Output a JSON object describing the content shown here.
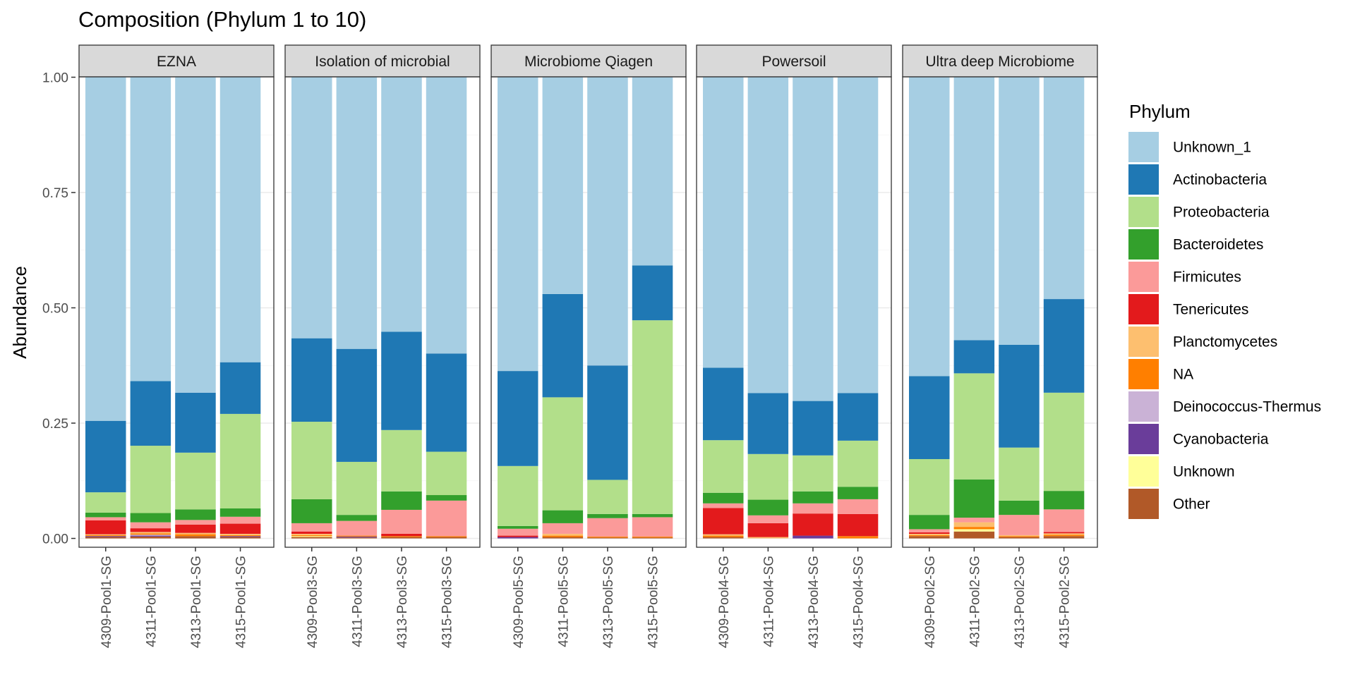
{
  "chart_data": {
    "type": "bar",
    "stacked": true,
    "title": "Composition (Phylum 1 to 10)",
    "ylabel": "Abundance",
    "xlabel": "",
    "ylim": [
      0,
      1
    ],
    "yticks": [
      "0.00",
      "0.25",
      "0.50",
      "0.75",
      "1.00"
    ],
    "grid": true,
    "legend": {
      "title": "Phylum",
      "position": "right"
    },
    "stack_order": [
      "Other",
      "Unknown",
      "Cyanobacteria",
      "Deinococcus-Thermus",
      "NA",
      "Planctomycetes",
      "Tenericutes",
      "Firmicutes",
      "Bacteroidetes",
      "Proteobacteria",
      "Actinobacteria",
      "Unknown_1"
    ],
    "series_info": [
      {
        "name": "Unknown_1",
        "color": "#A6CEE3"
      },
      {
        "name": "Actinobacteria",
        "color": "#1F78B4"
      },
      {
        "name": "Proteobacteria",
        "color": "#B2DF8A"
      },
      {
        "name": "Bacteroidetes",
        "color": "#33A02C"
      },
      {
        "name": "Firmicutes",
        "color": "#FB9A99"
      },
      {
        "name": "Tenericutes",
        "color": "#E31A1C"
      },
      {
        "name": "Planctomycetes",
        "color": "#FDBF6F"
      },
      {
        "name": "NA",
        "color": "#FF7F00"
      },
      {
        "name": "Deinococcus-Thermus",
        "color": "#CAB2D6"
      },
      {
        "name": "Cyanobacteria",
        "color": "#6A3D9A"
      },
      {
        "name": "Unknown",
        "color": "#FFFF99"
      },
      {
        "name": "Other",
        "color": "#B15928"
      }
    ],
    "panels": [
      {
        "name": "EZNA",
        "samples": [
          {
            "label": "4309-Pool1-SG",
            "values": {
              "Other": 0.003,
              "Unknown": 0,
              "Cyanobacteria": 0.002,
              "Deinococcus-Thermus": 0,
              "NA": 0.002,
              "Planctomycetes": 0.002,
              "Tenericutes": 0.03,
              "Firmicutes": 0.007,
              "Bacteroidetes": 0.01,
              "Proteobacteria": 0.044,
              "Actinobacteria": 0.155,
              "Unknown_1": 0.745
            }
          },
          {
            "label": "4311-Pool1-SG",
            "values": {
              "Other": 0.004,
              "Unknown": 0,
              "Cyanobacteria": 0.002,
              "Deinococcus-Thermus": 0.002,
              "NA": 0.003,
              "Planctomycetes": 0.003,
              "Tenericutes": 0.008,
              "Firmicutes": 0.013,
              "Bacteroidetes": 0.02,
              "Proteobacteria": 0.146,
              "Actinobacteria": 0.14,
              "Unknown_1": 0.659
            }
          },
          {
            "label": "4313-Pool1-SG",
            "values": {
              "Other": 0.005,
              "Unknown": 0,
              "Cyanobacteria": 0,
              "Deinococcus-Thermus": 0,
              "NA": 0.004,
              "Planctomycetes": 0.003,
              "Tenericutes": 0.018,
              "Firmicutes": 0.01,
              "Bacteroidetes": 0.023,
              "Proteobacteria": 0.123,
              "Actinobacteria": 0.13,
              "Unknown_1": 0.684
            }
          },
          {
            "label": "4315-Pool1-SG",
            "values": {
              "Other": 0.003,
              "Unknown": 0,
              "Cyanobacteria": 0.002,
              "Deinococcus-Thermus": 0,
              "NA": 0.002,
              "Planctomycetes": 0.003,
              "Tenericutes": 0.022,
              "Firmicutes": 0.015,
              "Bacteroidetes": 0.018,
              "Proteobacteria": 0.205,
              "Actinobacteria": 0.112,
              "Unknown_1": 0.618
            }
          }
        ]
      },
      {
        "name": "Isolation of microbial",
        "samples": [
          {
            "label": "4309-Pool3-SG",
            "values": {
              "Other": 0.003,
              "Unknown": 0.002,
              "Cyanobacteria": 0,
              "Deinococcus-Thermus": 0,
              "NA": 0.002,
              "Planctomycetes": 0.003,
              "Tenericutes": 0.005,
              "Firmicutes": 0.018,
              "Bacteroidetes": 0.052,
              "Proteobacteria": 0.168,
              "Actinobacteria": 0.181,
              "Unknown_1": 0.566
            }
          },
          {
            "label": "4311-Pool3-SG",
            "values": {
              "Other": 0.002,
              "Unknown": 0,
              "Cyanobacteria": 0.002,
              "Deinococcus-Thermus": 0,
              "NA": 0.002,
              "Planctomycetes": 0,
              "Tenericutes": 0,
              "Firmicutes": 0.032,
              "Bacteroidetes": 0.013,
              "Proteobacteria": 0.115,
              "Actinobacteria": 0.245,
              "Unknown_1": 0.589
            }
          },
          {
            "label": "4313-Pool3-SG",
            "values": {
              "Other": 0.003,
              "Unknown": 0,
              "Cyanobacteria": 0,
              "Deinococcus-Thermus": 0,
              "NA": 0.002,
              "Planctomycetes": 0,
              "Tenericutes": 0.005,
              "Firmicutes": 0.052,
              "Bacteroidetes": 0.04,
              "Proteobacteria": 0.133,
              "Actinobacteria": 0.213,
              "Unknown_1": 0.552
            }
          },
          {
            "label": "4315-Pool3-SG",
            "values": {
              "Other": 0.003,
              "Unknown": 0,
              "Cyanobacteria": 0,
              "Deinococcus-Thermus": 0,
              "NA": 0.002,
              "Planctomycetes": 0,
              "Tenericutes": 0,
              "Firmicutes": 0.077,
              "Bacteroidetes": 0.012,
              "Proteobacteria": 0.094,
              "Actinobacteria": 0.213,
              "Unknown_1": 0.599
            }
          }
        ]
      },
      {
        "name": "Microbiome Qiagen",
        "samples": [
          {
            "label": "4309-Pool5-SG",
            "values": {
              "Other": 0,
              "Unknown": 0,
              "Cyanobacteria": 0.003,
              "Deinococcus-Thermus": 0,
              "NA": 0,
              "Planctomycetes": 0,
              "Tenericutes": 0.003,
              "Firmicutes": 0.015,
              "Bacteroidetes": 0.006,
              "Proteobacteria": 0.13,
              "Actinobacteria": 0.206,
              "Unknown_1": 0.637
            }
          },
          {
            "label": "4311-Pool5-SG",
            "values": {
              "Other": 0.003,
              "Unknown": 0,
              "Cyanobacteria": 0,
              "Deinococcus-Thermus": 0,
              "NA": 0.003,
              "Planctomycetes": 0.004,
              "Tenericutes": 0,
              "Firmicutes": 0.023,
              "Bacteroidetes": 0.028,
              "Proteobacteria": 0.245,
              "Actinobacteria": 0.224,
              "Unknown_1": 0.47
            }
          },
          {
            "label": "4313-Pool5-SG",
            "values": {
              "Other": 0.002,
              "Unknown": 0,
              "Cyanobacteria": 0,
              "Deinococcus-Thermus": 0,
              "NA": 0.002,
              "Planctomycetes": 0,
              "Tenericutes": 0,
              "Firmicutes": 0.04,
              "Bacteroidetes": 0.009,
              "Proteobacteria": 0.074,
              "Actinobacteria": 0.248,
              "Unknown_1": 0.625
            }
          },
          {
            "label": "4315-Pool5-SG",
            "values": {
              "Other": 0.002,
              "Unknown": 0,
              "Cyanobacteria": 0,
              "Deinococcus-Thermus": 0,
              "NA": 0.002,
              "Planctomycetes": 0,
              "Tenericutes": 0,
              "Firmicutes": 0.042,
              "Bacteroidetes": 0.007,
              "Proteobacteria": 0.42,
              "Actinobacteria": 0.119,
              "Unknown_1": 0.408
            }
          }
        ]
      },
      {
        "name": "Powersoil",
        "samples": [
          {
            "label": "4309-Pool4-SG",
            "values": {
              "Other": 0.003,
              "Unknown": 0,
              "Cyanobacteria": 0,
              "Deinococcus-Thermus": 0,
              "NA": 0.003,
              "Planctomycetes": 0.003,
              "Tenericutes": 0.057,
              "Firmicutes": 0.01,
              "Bacteroidetes": 0.023,
              "Proteobacteria": 0.114,
              "Actinobacteria": 0.157,
              "Unknown_1": 0.63
            }
          },
          {
            "label": "4311-Pool4-SG",
            "values": {
              "Other": 0,
              "Unknown": 0,
              "Cyanobacteria": 0,
              "Deinococcus-Thermus": 0,
              "NA": 0,
              "Planctomycetes": 0.003,
              "Tenericutes": 0.03,
              "Firmicutes": 0.017,
              "Bacteroidetes": 0.034,
              "Proteobacteria": 0.099,
              "Actinobacteria": 0.132,
              "Unknown_1": 0.685
            }
          },
          {
            "label": "4313-Pool4-SG",
            "values": {
              "Other": 0,
              "Unknown": 0,
              "Cyanobacteria": 0.006,
              "Deinococcus-Thermus": 0,
              "NA": 0,
              "Planctomycetes": 0,
              "Tenericutes": 0.048,
              "Firmicutes": 0.022,
              "Bacteroidetes": 0.026,
              "Proteobacteria": 0.078,
              "Actinobacteria": 0.118,
              "Unknown_1": 0.702
            }
          },
          {
            "label": "4315-Pool4-SG",
            "values": {
              "Other": 0,
              "Unknown": 0,
              "Cyanobacteria": 0,
              "Deinococcus-Thermus": 0,
              "NA": 0.005,
              "Planctomycetes": 0,
              "Tenericutes": 0.048,
              "Firmicutes": 0.032,
              "Bacteroidetes": 0.027,
              "Proteobacteria": 0.1,
              "Actinobacteria": 0.103,
              "Unknown_1": 0.685
            }
          }
        ]
      },
      {
        "name": "Ultra deep Microbiome",
        "samples": [
          {
            "label": "4309-Pool2-SG",
            "values": {
              "Other": 0.005,
              "Unknown": 0,
              "Cyanobacteria": 0,
              "Deinococcus-Thermus": 0,
              "NA": 0.002,
              "Planctomycetes": 0.003,
              "Tenericutes": 0.003,
              "Firmicutes": 0.007,
              "Bacteroidetes": 0.031,
              "Proteobacteria": 0.121,
              "Actinobacteria": 0.18,
              "Unknown_1": 0.648
            }
          },
          {
            "label": "4311-Pool2-SG",
            "values": {
              "Other": 0.015,
              "Unknown": 0.005,
              "Cyanobacteria": 0,
              "Deinococcus-Thermus": 0,
              "NA": 0.005,
              "Planctomycetes": 0.01,
              "Tenericutes": 0,
              "Firmicutes": 0.01,
              "Bacteroidetes": 0.083,
              "Proteobacteria": 0.23,
              "Actinobacteria": 0.072,
              "Unknown_1": 0.57
            }
          },
          {
            "label": "4313-Pool2-SG",
            "values": {
              "Other": 0.003,
              "Unknown": 0,
              "Cyanobacteria": 0,
              "Deinococcus-Thermus": 0,
              "NA": 0.002,
              "Planctomycetes": 0.002,
              "Tenericutes": 0,
              "Firmicutes": 0.044,
              "Bacteroidetes": 0.031,
              "Proteobacteria": 0.115,
              "Actinobacteria": 0.223,
              "Unknown_1": 0.58
            }
          },
          {
            "label": "4315-Pool2-SG",
            "values": {
              "Other": 0.005,
              "Unknown": 0,
              "Cyanobacteria": 0,
              "Deinococcus-Thermus": 0,
              "NA": 0.003,
              "Planctomycetes": 0.003,
              "Tenericutes": 0.003,
              "Firmicutes": 0.049,
              "Bacteroidetes": 0.04,
              "Proteobacteria": 0.213,
              "Actinobacteria": 0.203,
              "Unknown_1": 0.481
            }
          }
        ]
      }
    ]
  }
}
